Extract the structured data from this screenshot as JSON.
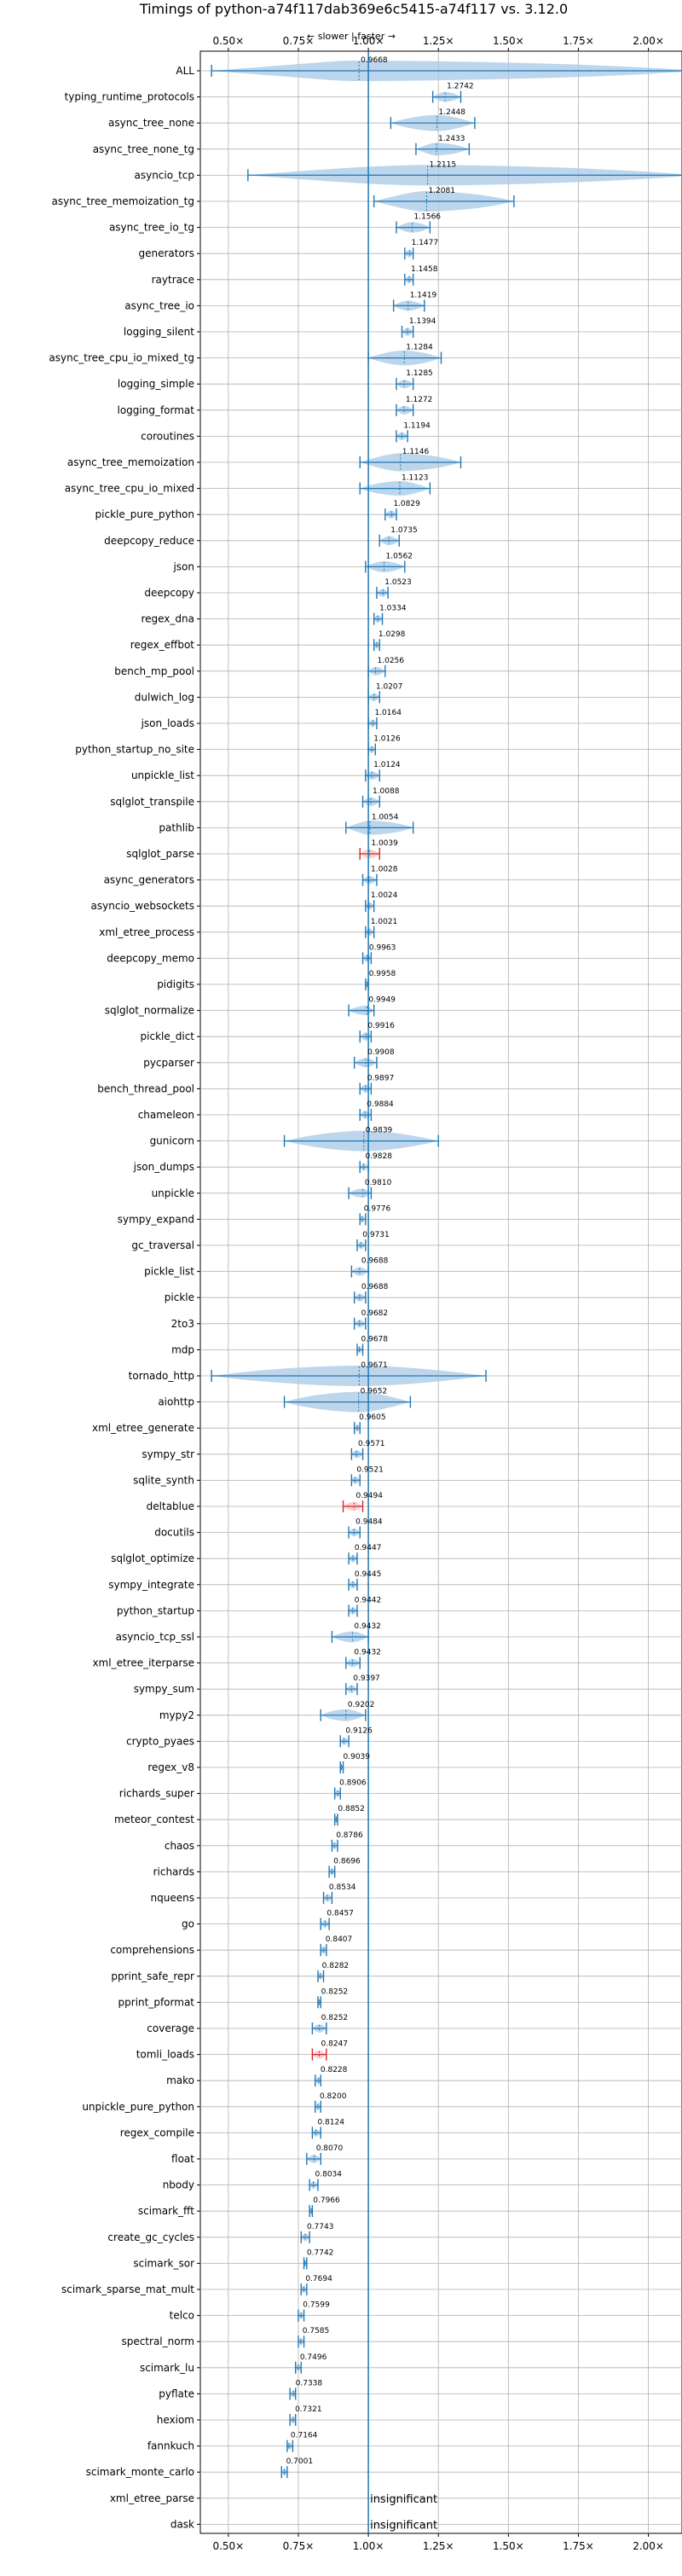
{
  "chart_data": {
    "type": "violin",
    "title": "Timings of python-a74f117dab369e6c5415-a74f117 vs. 3.12.0",
    "xlabel": "",
    "ylabel": "",
    "direction_label": "← slower | faster →",
    "xlim": [
      0.4,
      2.12
    ],
    "xticks": [
      0.5,
      0.75,
      1.0,
      1.25,
      1.5,
      1.75,
      2.0
    ],
    "xtick_labels": [
      "0.50×",
      "0.75×",
      "1.00×",
      "1.25×",
      "1.50×",
      "1.75×",
      "2.00×"
    ],
    "reference_line": 1.0,
    "grid": true,
    "benchmarks": [
      {
        "name": "ALL",
        "value": 0.9668,
        "label": "0.9668",
        "lo": 0.44,
        "hi": 2.17,
        "sig": false
      },
      {
        "name": "typing_runtime_protocols",
        "value": 1.2742,
        "label": "1.2742",
        "lo": 1.23,
        "hi": 1.33,
        "sig": false
      },
      {
        "name": "async_tree_none",
        "value": 1.2448,
        "label": "1.2448",
        "lo": 1.08,
        "hi": 1.38,
        "sig": false
      },
      {
        "name": "async_tree_none_tg",
        "value": 1.2433,
        "label": "1.2433",
        "lo": 1.17,
        "hi": 1.36,
        "sig": false
      },
      {
        "name": "asyncio_tcp",
        "value": 1.2115,
        "label": "1.2115",
        "lo": 0.57,
        "hi": 2.17,
        "sig": false
      },
      {
        "name": "async_tree_memoization_tg",
        "value": 1.2081,
        "label": "1.2081",
        "lo": 1.02,
        "hi": 1.52,
        "sig": false
      },
      {
        "name": "async_tree_io_tg",
        "value": 1.1566,
        "label": "1.1566",
        "lo": 1.1,
        "hi": 1.22,
        "sig": false
      },
      {
        "name": "generators",
        "value": 1.1477,
        "label": "1.1477",
        "lo": 1.13,
        "hi": 1.16,
        "sig": false
      },
      {
        "name": "raytrace",
        "value": 1.1458,
        "label": "1.1458",
        "lo": 1.13,
        "hi": 1.16,
        "sig": false
      },
      {
        "name": "async_tree_io",
        "value": 1.1419,
        "label": "1.1419",
        "lo": 1.09,
        "hi": 1.2,
        "sig": false
      },
      {
        "name": "logging_silent",
        "value": 1.1394,
        "label": "1.1394",
        "lo": 1.12,
        "hi": 1.16,
        "sig": false
      },
      {
        "name": "async_tree_cpu_io_mixed_tg",
        "value": 1.1284,
        "label": "1.1284",
        "lo": 1.0,
        "hi": 1.26,
        "sig": false
      },
      {
        "name": "logging_simple",
        "value": 1.1285,
        "label": "1.1285",
        "lo": 1.1,
        "hi": 1.16,
        "sig": false
      },
      {
        "name": "logging_format",
        "value": 1.1272,
        "label": "1.1272",
        "lo": 1.1,
        "hi": 1.16,
        "sig": false
      },
      {
        "name": "coroutines",
        "value": 1.1194,
        "label": "1.1194",
        "lo": 1.1,
        "hi": 1.14,
        "sig": false
      },
      {
        "name": "async_tree_memoization",
        "value": 1.1146,
        "label": "1.1146",
        "lo": 0.97,
        "hi": 1.33,
        "sig": false
      },
      {
        "name": "async_tree_cpu_io_mixed",
        "value": 1.1123,
        "label": "1.1123",
        "lo": 0.97,
        "hi": 1.22,
        "sig": false
      },
      {
        "name": "pickle_pure_python",
        "value": 1.0829,
        "label": "1.0829",
        "lo": 1.06,
        "hi": 1.1,
        "sig": false
      },
      {
        "name": "deepcopy_reduce",
        "value": 1.0735,
        "label": "1.0735",
        "lo": 1.04,
        "hi": 1.11,
        "sig": false
      },
      {
        "name": "json",
        "value": 1.0562,
        "label": "1.0562",
        "lo": 0.99,
        "hi": 1.13,
        "sig": false
      },
      {
        "name": "deepcopy",
        "value": 1.0523,
        "label": "1.0523",
        "lo": 1.03,
        "hi": 1.07,
        "sig": false
      },
      {
        "name": "regex_dna",
        "value": 1.0334,
        "label": "1.0334",
        "lo": 1.02,
        "hi": 1.05,
        "sig": false
      },
      {
        "name": "regex_effbot",
        "value": 1.0298,
        "label": "1.0298",
        "lo": 1.02,
        "hi": 1.04,
        "sig": false
      },
      {
        "name": "bench_mp_pool",
        "value": 1.0256,
        "label": "1.0256",
        "lo": 1.0,
        "hi": 1.06,
        "sig": false
      },
      {
        "name": "dulwich_log",
        "value": 1.0207,
        "label": "1.0207",
        "lo": 1.0,
        "hi": 1.04,
        "sig": false
      },
      {
        "name": "json_loads",
        "value": 1.0164,
        "label": "1.0164",
        "lo": 1.0,
        "hi": 1.03,
        "sig": false
      },
      {
        "name": "python_startup_no_site",
        "value": 1.0126,
        "label": "1.0126",
        "lo": 1.0,
        "hi": 1.025,
        "sig": false
      },
      {
        "name": "unpickle_list",
        "value": 1.0124,
        "label": "1.0124",
        "lo": 0.99,
        "hi": 1.04,
        "sig": false
      },
      {
        "name": "sqlglot_transpile",
        "value": 1.0088,
        "label": "1.0088",
        "lo": 0.98,
        "hi": 1.04,
        "sig": false
      },
      {
        "name": "pathlib",
        "value": 1.0054,
        "label": "1.0054",
        "lo": 0.92,
        "hi": 1.16,
        "sig": false
      },
      {
        "name": "sqlglot_parse",
        "value": 1.0039,
        "label": "1.0039",
        "lo": 0.97,
        "hi": 1.04,
        "sig": true
      },
      {
        "name": "async_generators",
        "value": 1.0028,
        "label": "1.0028",
        "lo": 0.98,
        "hi": 1.03,
        "sig": false
      },
      {
        "name": "asyncio_websockets",
        "value": 1.0024,
        "label": "1.0024",
        "lo": 0.99,
        "hi": 1.02,
        "sig": false
      },
      {
        "name": "xml_etree_process",
        "value": 1.0021,
        "label": "1.0021",
        "lo": 0.99,
        "hi": 1.02,
        "sig": false
      },
      {
        "name": "deepcopy_memo",
        "value": 0.9963,
        "label": "0.9963",
        "lo": 0.98,
        "hi": 1.01,
        "sig": false
      },
      {
        "name": "pidigits",
        "value": 0.9958,
        "label": "0.9958",
        "lo": 0.99,
        "hi": 1.0,
        "sig": false
      },
      {
        "name": "sqlglot_normalize",
        "value": 0.9949,
        "label": "0.9949",
        "lo": 0.93,
        "hi": 1.02,
        "sig": false
      },
      {
        "name": "pickle_dict",
        "value": 0.9916,
        "label": "0.9916",
        "lo": 0.97,
        "hi": 1.01,
        "sig": false
      },
      {
        "name": "pycparser",
        "value": 0.9908,
        "label": "0.9908",
        "lo": 0.95,
        "hi": 1.03,
        "sig": false
      },
      {
        "name": "bench_thread_pool",
        "value": 0.9897,
        "label": "0.9897",
        "lo": 0.97,
        "hi": 1.01,
        "sig": false
      },
      {
        "name": "chameleon",
        "value": 0.9884,
        "label": "0.9884",
        "lo": 0.97,
        "hi": 1.01,
        "sig": false
      },
      {
        "name": "gunicorn",
        "value": 0.9839,
        "label": "0.9839",
        "lo": 0.7,
        "hi": 1.25,
        "sig": false
      },
      {
        "name": "json_dumps",
        "value": 0.9828,
        "label": "0.9828",
        "lo": 0.97,
        "hi": 1.0,
        "sig": false
      },
      {
        "name": "unpickle",
        "value": 0.981,
        "label": "0.9810",
        "lo": 0.93,
        "hi": 1.01,
        "sig": false
      },
      {
        "name": "sympy_expand",
        "value": 0.9776,
        "label": "0.9776",
        "lo": 0.97,
        "hi": 0.99,
        "sig": false
      },
      {
        "name": "gc_traversal",
        "value": 0.9731,
        "label": "0.9731",
        "lo": 0.96,
        "hi": 0.99,
        "sig": false
      },
      {
        "name": "pickle_list",
        "value": 0.9688,
        "label": "0.9688",
        "lo": 0.94,
        "hi": 1.0,
        "sig": false
      },
      {
        "name": "pickle",
        "value": 0.9688,
        "label": "0.9688",
        "lo": 0.95,
        "hi": 0.99,
        "sig": false
      },
      {
        "name": "2to3",
        "value": 0.9682,
        "label": "0.9682",
        "lo": 0.95,
        "hi": 0.99,
        "sig": false
      },
      {
        "name": "mdp",
        "value": 0.9678,
        "label": "0.9678",
        "lo": 0.96,
        "hi": 0.98,
        "sig": false
      },
      {
        "name": "tornado_http",
        "value": 0.9671,
        "label": "0.9671",
        "lo": 0.44,
        "hi": 1.42,
        "sig": false
      },
      {
        "name": "aiohttp",
        "value": 0.9652,
        "label": "0.9652",
        "lo": 0.7,
        "hi": 1.15,
        "sig": false
      },
      {
        "name": "xml_etree_generate",
        "value": 0.9605,
        "label": "0.9605",
        "lo": 0.95,
        "hi": 0.97,
        "sig": false
      },
      {
        "name": "sympy_str",
        "value": 0.9571,
        "label": "0.9571",
        "lo": 0.94,
        "hi": 0.98,
        "sig": false
      },
      {
        "name": "sqlite_synth",
        "value": 0.9521,
        "label": "0.9521",
        "lo": 0.94,
        "hi": 0.97,
        "sig": false
      },
      {
        "name": "deltablue",
        "value": 0.9494,
        "label": "0.9494",
        "lo": 0.91,
        "hi": 0.98,
        "sig": true
      },
      {
        "name": "docutils",
        "value": 0.9484,
        "label": "0.9484",
        "lo": 0.93,
        "hi": 0.97,
        "sig": false
      },
      {
        "name": "sqlglot_optimize",
        "value": 0.9447,
        "label": "0.9447",
        "lo": 0.93,
        "hi": 0.96,
        "sig": false
      },
      {
        "name": "sympy_integrate",
        "value": 0.9445,
        "label": "0.9445",
        "lo": 0.93,
        "hi": 0.96,
        "sig": false
      },
      {
        "name": "python_startup",
        "value": 0.9442,
        "label": "0.9442",
        "lo": 0.93,
        "hi": 0.96,
        "sig": false
      },
      {
        "name": "asyncio_tcp_ssl",
        "value": 0.9432,
        "label": "0.9432",
        "lo": 0.87,
        "hi": 1.0,
        "sig": false
      },
      {
        "name": "xml_etree_iterparse",
        "value": 0.9432,
        "label": "0.9432",
        "lo": 0.92,
        "hi": 0.97,
        "sig": false
      },
      {
        "name": "sympy_sum",
        "value": 0.9397,
        "label": "0.9397",
        "lo": 0.92,
        "hi": 0.96,
        "sig": false
      },
      {
        "name": "mypy2",
        "value": 0.9202,
        "label": "0.9202",
        "lo": 0.83,
        "hi": 0.99,
        "sig": false
      },
      {
        "name": "crypto_pyaes",
        "value": 0.9126,
        "label": "0.9126",
        "lo": 0.9,
        "hi": 0.93,
        "sig": false
      },
      {
        "name": "regex_v8",
        "value": 0.9039,
        "label": "0.9039",
        "lo": 0.9,
        "hi": 0.91,
        "sig": false
      },
      {
        "name": "richards_super",
        "value": 0.8906,
        "label": "0.8906",
        "lo": 0.88,
        "hi": 0.9,
        "sig": false
      },
      {
        "name": "meteor_contest",
        "value": 0.8852,
        "label": "0.8852",
        "lo": 0.88,
        "hi": 0.89,
        "sig": false
      },
      {
        "name": "chaos",
        "value": 0.8786,
        "label": "0.8786",
        "lo": 0.87,
        "hi": 0.89,
        "sig": false
      },
      {
        "name": "richards",
        "value": 0.8696,
        "label": "0.8696",
        "lo": 0.86,
        "hi": 0.88,
        "sig": false
      },
      {
        "name": "nqueens",
        "value": 0.8534,
        "label": "0.8534",
        "lo": 0.84,
        "hi": 0.87,
        "sig": false
      },
      {
        "name": "go",
        "value": 0.8457,
        "label": "0.8457",
        "lo": 0.83,
        "hi": 0.86,
        "sig": false
      },
      {
        "name": "comprehensions",
        "value": 0.8407,
        "label": "0.8407",
        "lo": 0.83,
        "hi": 0.85,
        "sig": false
      },
      {
        "name": "pprint_safe_repr",
        "value": 0.8282,
        "label": "0.8282",
        "lo": 0.82,
        "hi": 0.84,
        "sig": false
      },
      {
        "name": "pprint_pformat",
        "value": 0.8252,
        "label": "0.8252",
        "lo": 0.82,
        "hi": 0.83,
        "sig": false
      },
      {
        "name": "coverage",
        "value": 0.8252,
        "label": "0.8252",
        "lo": 0.8,
        "hi": 0.85,
        "sig": false
      },
      {
        "name": "tomli_loads",
        "value": 0.8247,
        "label": "0.8247",
        "lo": 0.8,
        "hi": 0.85,
        "sig": true
      },
      {
        "name": "mako",
        "value": 0.8228,
        "label": "0.8228",
        "lo": 0.81,
        "hi": 0.83,
        "sig": false
      },
      {
        "name": "unpickle_pure_python",
        "value": 0.82,
        "label": "0.8200",
        "lo": 0.81,
        "hi": 0.83,
        "sig": false
      },
      {
        "name": "regex_compile",
        "value": 0.8124,
        "label": "0.8124",
        "lo": 0.8,
        "hi": 0.83,
        "sig": false
      },
      {
        "name": "float",
        "value": 0.807,
        "label": "0.8070",
        "lo": 0.78,
        "hi": 0.83,
        "sig": false
      },
      {
        "name": "nbody",
        "value": 0.8034,
        "label": "0.8034",
        "lo": 0.79,
        "hi": 0.82,
        "sig": false
      },
      {
        "name": "scimark_fft",
        "value": 0.7966,
        "label": "0.7966",
        "lo": 0.79,
        "hi": 0.8,
        "sig": false
      },
      {
        "name": "create_gc_cycles",
        "value": 0.7743,
        "label": "0.7743",
        "lo": 0.76,
        "hi": 0.79,
        "sig": false
      },
      {
        "name": "scimark_sor",
        "value": 0.7742,
        "label": "0.7742",
        "lo": 0.77,
        "hi": 0.78,
        "sig": false
      },
      {
        "name": "scimark_sparse_mat_mult",
        "value": 0.7694,
        "label": "0.7694",
        "lo": 0.76,
        "hi": 0.78,
        "sig": false
      },
      {
        "name": "telco",
        "value": 0.7599,
        "label": "0.7599",
        "lo": 0.75,
        "hi": 0.77,
        "sig": false
      },
      {
        "name": "spectral_norm",
        "value": 0.7585,
        "label": "0.7585",
        "lo": 0.75,
        "hi": 0.77,
        "sig": false
      },
      {
        "name": "scimark_lu",
        "value": 0.7496,
        "label": "0.7496",
        "lo": 0.74,
        "hi": 0.76,
        "sig": false
      },
      {
        "name": "pyflate",
        "value": 0.7338,
        "label": "0.7338",
        "lo": 0.72,
        "hi": 0.74,
        "sig": false
      },
      {
        "name": "hexiom",
        "value": 0.7321,
        "label": "0.7321",
        "lo": 0.72,
        "hi": 0.74,
        "sig": false
      },
      {
        "name": "fannkuch",
        "value": 0.7164,
        "label": "0.7164",
        "lo": 0.71,
        "hi": 0.73,
        "sig": false
      },
      {
        "name": "scimark_monte_carlo",
        "value": 0.7001,
        "label": "0.7001",
        "lo": 0.69,
        "hi": 0.71,
        "sig": false
      },
      {
        "name": "xml_etree_parse",
        "value": null,
        "label": "insignificant",
        "lo": null,
        "hi": null,
        "sig": false
      },
      {
        "name": "dask",
        "value": null,
        "label": "insignificant",
        "lo": null,
        "hi": null,
        "sig": false
      }
    ]
  },
  "colors": {
    "violin_fill": "#a7c8e6",
    "violin_line": "#1f77b4",
    "highlight": "#d62728",
    "grid": "#b0b0b0",
    "axis": "#000000"
  }
}
